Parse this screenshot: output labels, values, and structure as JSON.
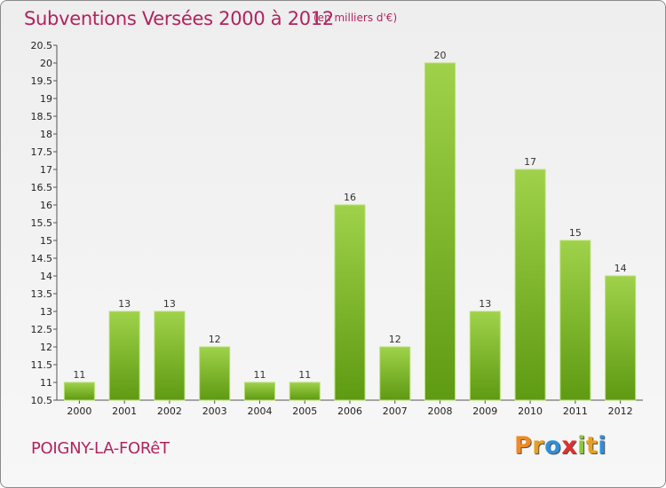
{
  "chart_data": {
    "type": "bar",
    "title": "Subventions Versées 2000 à 2012",
    "subtitle": "(en milliers d'€)",
    "xlabel": "",
    "ylabel": "",
    "categories": [
      "2000",
      "2001",
      "2002",
      "2003",
      "2004",
      "2005",
      "2006",
      "2007",
      "2008",
      "2009",
      "2010",
      "2011",
      "2012"
    ],
    "values": [
      11,
      13,
      13,
      12,
      11,
      11,
      16,
      12,
      20,
      13,
      17,
      15,
      14
    ],
    "value_labels": [
      "11",
      "13",
      "13",
      "12",
      "11",
      "11",
      "16",
      "12",
      "20",
      "13",
      "17",
      "15",
      "14"
    ],
    "ylim": [
      10.5,
      20.5
    ],
    "yticks": [
      "10.5",
      "11",
      "11.5",
      "12",
      "12.5",
      "13",
      "13.5",
      "14",
      "14.5",
      "15",
      "15.5",
      "16",
      "16.5",
      "17",
      "17.5",
      "18",
      "18.5",
      "19",
      "19.5",
      "20",
      "20.5"
    ],
    "grid": false,
    "legend": "none",
    "bar_color": "#7cba2e"
  },
  "footer": {
    "commune": "POIGNY-LA-FORêT",
    "logo_letters": [
      "P",
      "r",
      "o",
      "x",
      "i",
      "t",
      "i"
    ],
    "logo_colors": [
      "#f08a24",
      "#e8a020",
      "#2f8fd8",
      "#e03030",
      "#8cc63f",
      "#e8a020",
      "#2f8fd8"
    ]
  }
}
